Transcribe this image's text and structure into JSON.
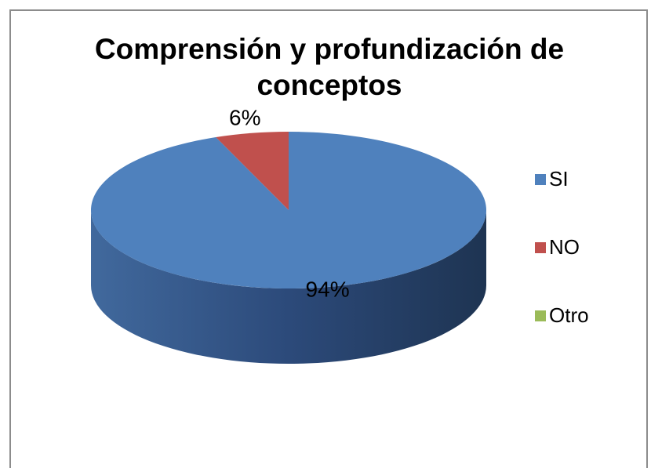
{
  "chart_data": {
    "type": "pie",
    "title": "Comprensión y profundización de conceptos",
    "categories": [
      "SI",
      "NO",
      "Otro"
    ],
    "values": [
      94,
      6,
      0
    ],
    "value_labels": [
      "94%",
      "6%",
      null
    ],
    "colors": [
      "#4f81bd",
      "#c0504d",
      "#9bbb59"
    ],
    "legend": "right"
  }
}
